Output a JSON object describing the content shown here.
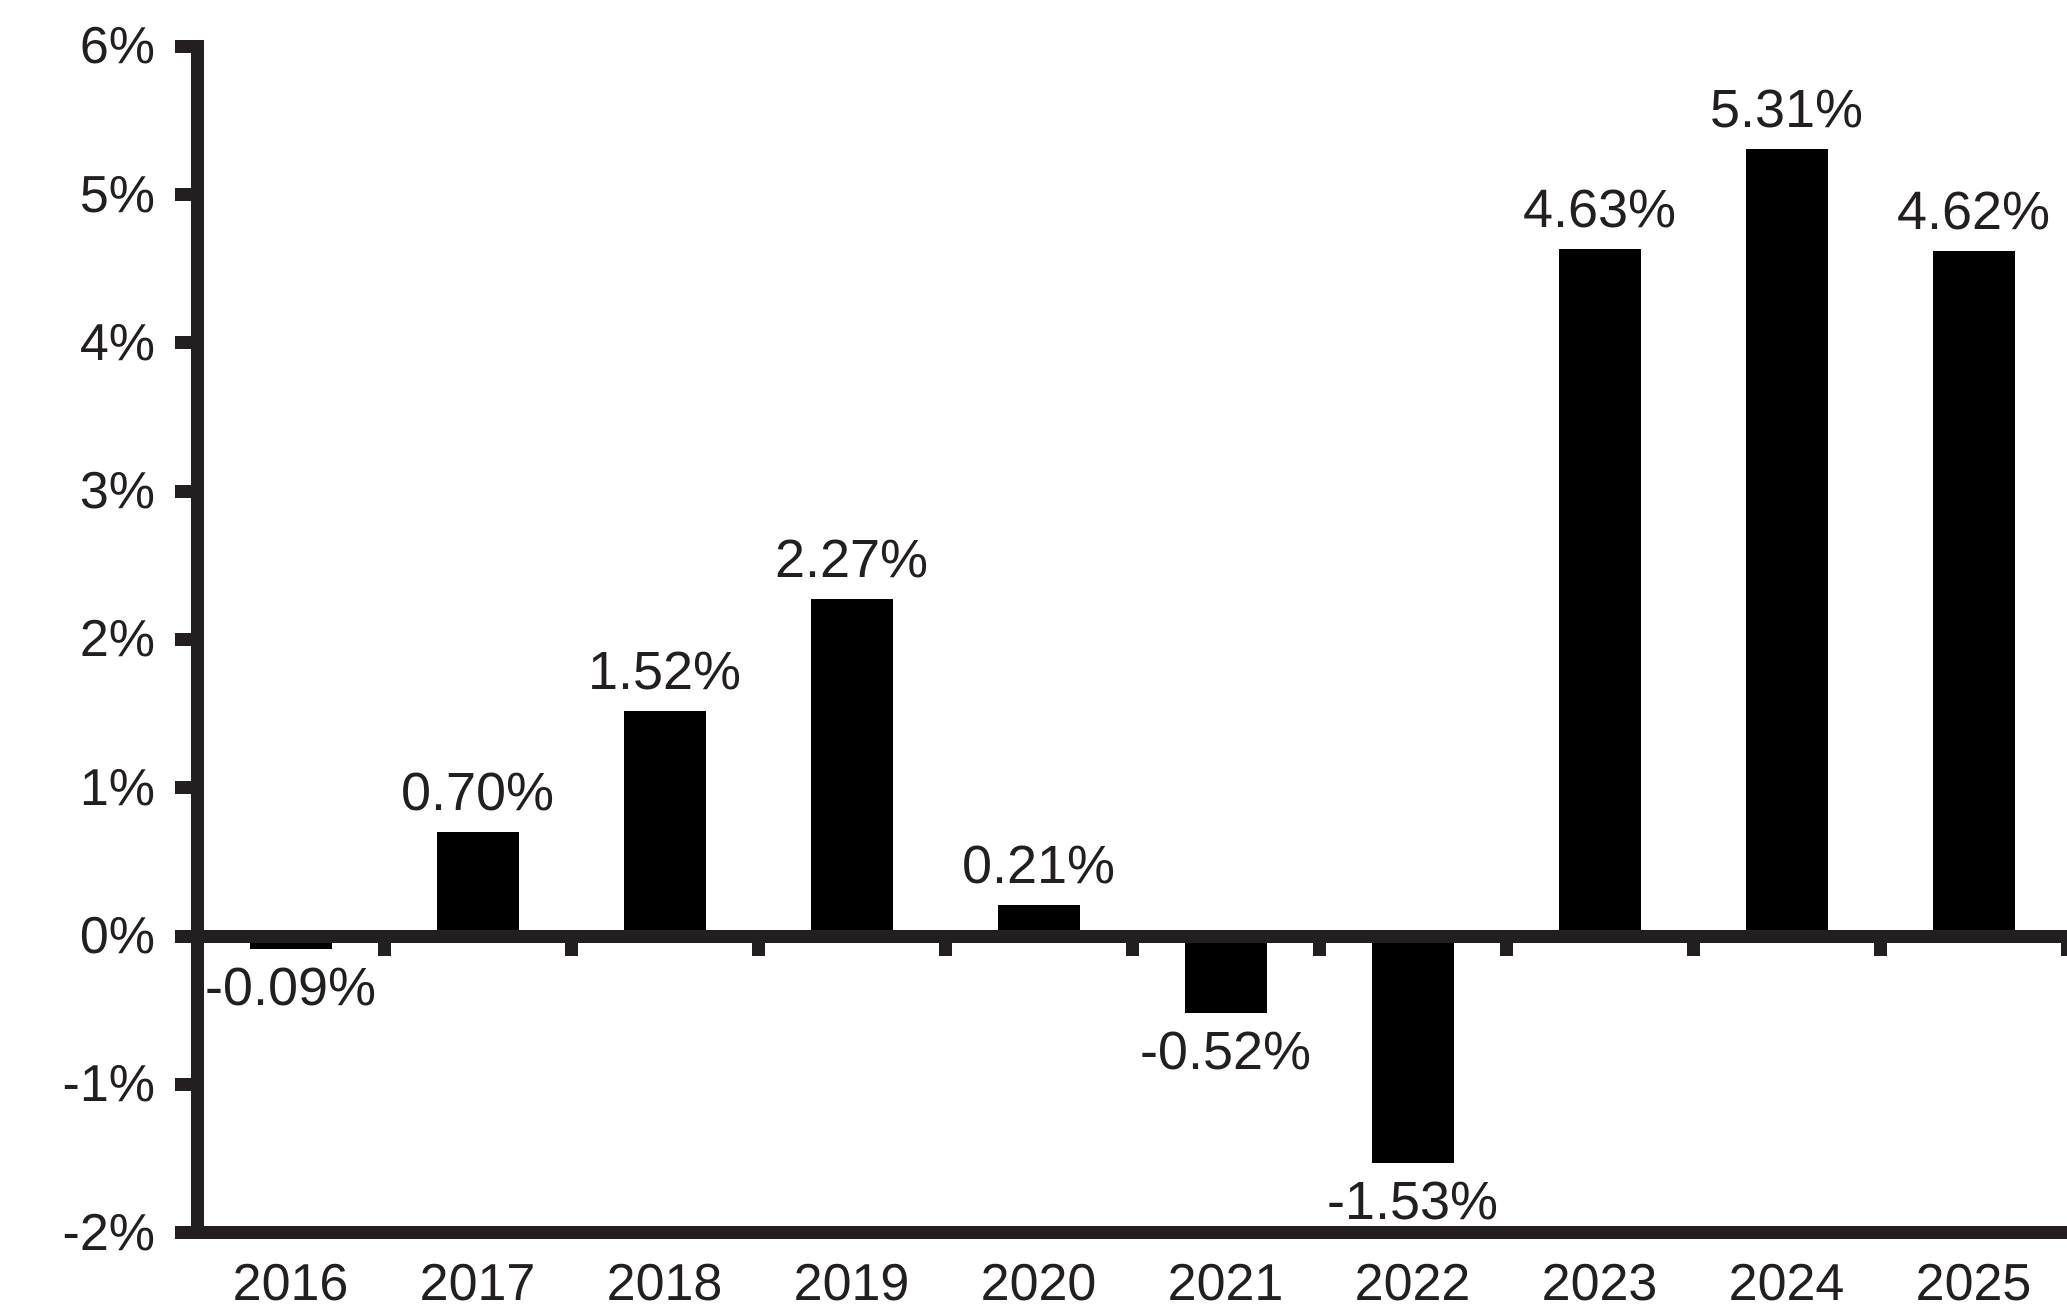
{
  "chart_data": {
    "type": "bar",
    "title": "",
    "xlabel": "",
    "ylabel": "",
    "categories": [
      "2016",
      "2017",
      "2018",
      "2019",
      "2020",
      "2021",
      "2022",
      "2023",
      "2024",
      "2025"
    ],
    "values": [
      -0.09,
      0.7,
      1.52,
      2.27,
      0.21,
      -0.52,
      -1.53,
      4.63,
      5.31,
      4.62
    ],
    "value_labels": [
      "-0.09%",
      "0.70%",
      "1.52%",
      "2.27%",
      "0.21%",
      "-0.52%",
      "-1.53%",
      "4.63%",
      "5.31%",
      "4.62%"
    ],
    "y_ticks": [
      6,
      5,
      4,
      3,
      2,
      1,
      0,
      -1,
      -2
    ],
    "y_tick_labels": [
      "6%",
      "5%",
      "4%",
      "3%",
      "2%",
      "1%",
      "0%",
      "-1%",
      "-2%"
    ],
    "ylim": [
      -2,
      6
    ],
    "grid": false,
    "legend_position": "none",
    "bar_color": "#000000",
    "axis_color": "#231f20",
    "label_color": "#231f20",
    "background_color": "#ffffff"
  }
}
